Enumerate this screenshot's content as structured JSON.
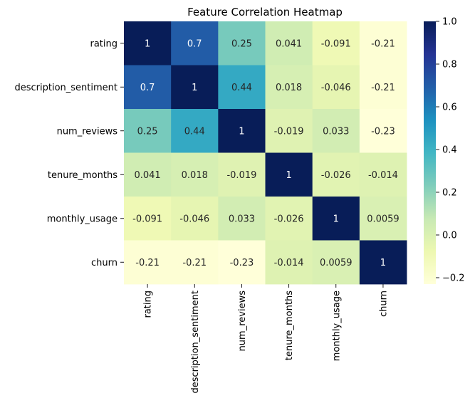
{
  "chart_data": {
    "type": "heatmap",
    "title": "Feature Correlation Heatmap",
    "xlabel": "",
    "ylabel": "",
    "x_categories": [
      "rating",
      "description_sentiment",
      "num_reviews",
      "tenure_months",
      "monthly_usage",
      "churn"
    ],
    "y_categories": [
      "rating",
      "description_sentiment",
      "num_reviews",
      "tenure_months",
      "monthly_usage",
      "churn"
    ],
    "values": [
      [
        1,
        0.7,
        0.25,
        0.041,
        -0.091,
        -0.21
      ],
      [
        0.7,
        1,
        0.44,
        0.018,
        -0.046,
        -0.21
      ],
      [
        0.25,
        0.44,
        1,
        -0.019,
        0.033,
        -0.23
      ],
      [
        0.041,
        0.018,
        -0.019,
        1,
        -0.026,
        -0.014
      ],
      [
        -0.091,
        -0.046,
        0.033,
        -0.026,
        1,
        0.0059
      ],
      [
        -0.21,
        -0.21,
        -0.23,
        -0.014,
        0.0059,
        1
      ]
    ],
    "annotations": [
      [
        "1",
        "0.7",
        "0.25",
        "0.041",
        "-0.091",
        "-0.21"
      ],
      [
        "0.7",
        "1",
        "0.44",
        "0.018",
        "-0.046",
        "-0.21"
      ],
      [
        "0.25",
        "0.44",
        "1",
        "-0.019",
        "0.033",
        "-0.23"
      ],
      [
        "0.041",
        "0.018",
        "-0.019",
        "1",
        "-0.026",
        "-0.014"
      ],
      [
        "-0.091",
        "-0.046",
        "0.033",
        "-0.026",
        "1",
        "0.0059"
      ],
      [
        "-0.21",
        "-0.21",
        "-0.23",
        "-0.014",
        "0.0059",
        "1"
      ]
    ],
    "colorbar": {
      "range": [
        -0.23,
        1
      ],
      "ticks": [
        1.0,
        0.8,
        0.6,
        0.4,
        0.2,
        0.0,
        -0.2
      ],
      "tick_labels": [
        "1.0",
        "0.8",
        "0.6",
        "0.4",
        "0.2",
        "0.0",
        "−0.2"
      ]
    },
    "colormap": "YlGnBu",
    "colormap_stops": [
      "#ffffd9",
      "#edf8b1",
      "#c7e9b4",
      "#7fcdbb",
      "#41b6c4",
      "#1d91c0",
      "#225ea8",
      "#253494",
      "#081d58"
    ]
  }
}
